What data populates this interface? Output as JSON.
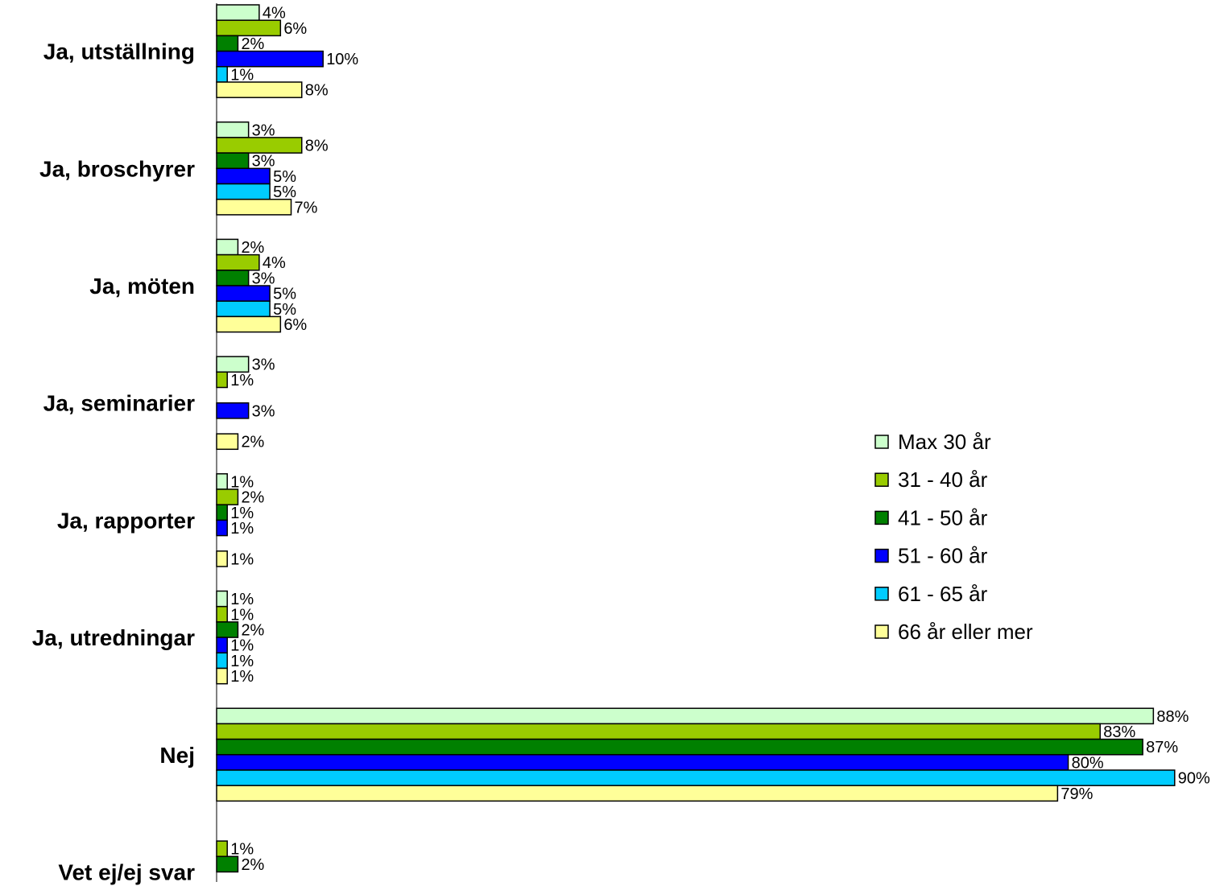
{
  "chart_data": {
    "type": "bar",
    "orientation": "horizontal",
    "title": "",
    "xlabel": "",
    "ylabel": "",
    "xlim": [
      0,
      90
    ],
    "grid": false,
    "legend_position": "right",
    "categories": [
      "Ja, utställning",
      "Ja, broschyrer",
      "Ja, möten",
      "Ja, seminarier",
      "Ja, rapporter",
      "Ja, utredningar",
      "Nej",
      "Vet ej/ej svar"
    ],
    "series": [
      {
        "name": "Max 30 år",
        "color": "#ccffcc",
        "values": [
          4,
          3,
          2,
          3,
          1,
          1,
          88,
          null
        ]
      },
      {
        "name": "31 - 40 år",
        "color": "#99cc00",
        "values": [
          6,
          8,
          4,
          1,
          2,
          1,
          83,
          1
        ]
      },
      {
        "name": "41 - 50 år",
        "color": "#008000",
        "values": [
          2,
          3,
          3,
          null,
          1,
          2,
          87,
          2
        ]
      },
      {
        "name": "51 - 60 år",
        "color": "#0000ff",
        "values": [
          10,
          5,
          5,
          3,
          1,
          1,
          80,
          null
        ]
      },
      {
        "name": "61 - 65 år",
        "color": "#00ccff",
        "values": [
          1,
          5,
          5,
          null,
          null,
          1,
          90,
          null
        ]
      },
      {
        "name": "66 år eller mer",
        "color": "#ffff99",
        "values": [
          8,
          7,
          6,
          2,
          1,
          1,
          79,
          null
        ]
      }
    ],
    "value_suffix": "%"
  }
}
